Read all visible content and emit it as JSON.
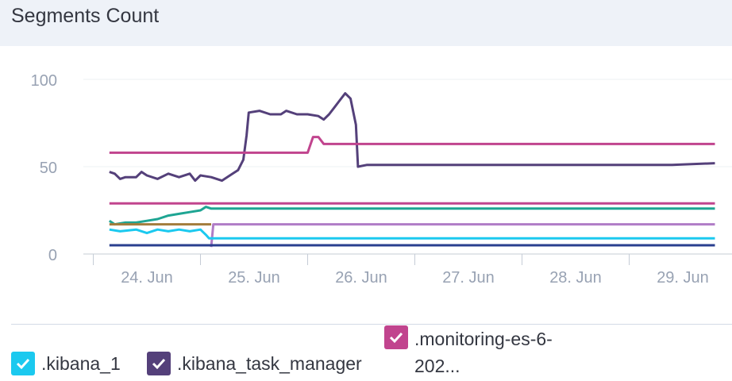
{
  "header": {
    "title": "Segments Count"
  },
  "legend": [
    {
      "label": ".kibana_1",
      "color": "#1bc9ef"
    },
    {
      "label": ".kibana_task_manager",
      "color": "#54407a"
    },
    {
      "label_line1": ".monitoring-es-6-",
      "label_line2": "202...",
      "color": "#c1448e"
    }
  ],
  "chart_data": {
    "type": "line",
    "xlabel": "",
    "ylabel": "",
    "x_ticks": [
      "24. Jun",
      "25. Jun",
      "26. Jun",
      "27. Jun",
      "28. Jun",
      "29. Jun"
    ],
    "y_ticks": [
      "0",
      "50",
      "100"
    ],
    "ylim": [
      0,
      100
    ],
    "xlim_days": [
      -0.35,
      5.3
    ],
    "grid": true,
    "legend_position": "bottom",
    "series": [
      {
        "color": "#54407a",
        "points": [
          [
            -0.35,
            47
          ],
          [
            -0.3,
            46
          ],
          [
            -0.25,
            43
          ],
          [
            -0.2,
            44
          ],
          [
            -0.1,
            44
          ],
          [
            -0.05,
            47
          ],
          [
            0,
            45
          ],
          [
            0.1,
            43
          ],
          [
            0.2,
            46
          ],
          [
            0.3,
            44
          ],
          [
            0.4,
            46
          ],
          [
            0.45,
            42
          ],
          [
            0.5,
            45
          ],
          [
            0.6,
            44
          ],
          [
            0.7,
            42
          ],
          [
            0.8,
            46
          ],
          [
            0.85,
            48
          ],
          [
            0.9,
            54
          ],
          [
            0.93,
            68
          ],
          [
            0.95,
            81
          ],
          [
            1.05,
            82
          ],
          [
            1.15,
            80
          ],
          [
            1.25,
            80
          ],
          [
            1.3,
            82
          ],
          [
            1.4,
            80
          ],
          [
            1.5,
            80
          ],
          [
            1.6,
            79
          ],
          [
            1.65,
            77
          ],
          [
            1.7,
            80
          ],
          [
            1.75,
            84
          ],
          [
            1.8,
            88
          ],
          [
            1.85,
            92
          ],
          [
            1.9,
            89
          ],
          [
            1.95,
            74
          ],
          [
            1.97,
            50
          ],
          [
            2.05,
            51
          ],
          [
            2.2,
            51
          ],
          [
            2.5,
            51
          ],
          [
            2.8,
            51
          ],
          [
            3.1,
            51
          ],
          [
            3.4,
            51
          ],
          [
            3.7,
            51
          ],
          [
            4.0,
            51
          ],
          [
            4.3,
            51
          ],
          [
            4.6,
            51
          ],
          [
            4.9,
            51
          ],
          [
            5.3,
            52
          ]
        ]
      },
      {
        "color": "#c1448e",
        "points": [
          [
            -0.35,
            58
          ],
          [
            1.45,
            58
          ],
          [
            1.5,
            58
          ],
          [
            1.55,
            67
          ],
          [
            1.6,
            67
          ],
          [
            1.65,
            63
          ],
          [
            5.3,
            63
          ]
        ]
      },
      {
        "color": "#c1448e",
        "points": [
          [
            -0.35,
            29
          ],
          [
            5.3,
            29
          ]
        ]
      },
      {
        "color": "#1ea593",
        "points": [
          [
            -0.35,
            19
          ],
          [
            -0.3,
            17
          ],
          [
            -0.2,
            18
          ],
          [
            -0.1,
            18
          ],
          [
            0,
            19
          ],
          [
            0.1,
            20
          ],
          [
            0.2,
            22
          ],
          [
            0.3,
            23
          ],
          [
            0.4,
            24
          ],
          [
            0.5,
            25
          ],
          [
            0.55,
            27
          ],
          [
            0.6,
            26
          ],
          [
            0.65,
            26
          ],
          [
            5.3,
            26
          ]
        ]
      },
      {
        "color": "#a37c3c",
        "points": [
          [
            -0.35,
            17
          ],
          [
            0.6,
            17
          ]
        ]
      },
      {
        "color": "#b07cc6",
        "points": [
          [
            0.6,
            4
          ],
          [
            0.62,
            17
          ],
          [
            5.3,
            17
          ]
        ]
      },
      {
        "color": "#1bc9ef",
        "points": [
          [
            -0.35,
            14
          ],
          [
            -0.25,
            13
          ],
          [
            -0.1,
            14
          ],
          [
            0,
            12
          ],
          [
            0.1,
            14
          ],
          [
            0.2,
            13
          ],
          [
            0.3,
            14
          ],
          [
            0.4,
            13
          ],
          [
            0.5,
            14
          ],
          [
            0.55,
            11
          ],
          [
            0.58,
            9
          ],
          [
            5.3,
            9
          ]
        ]
      },
      {
        "color": "#2a3f8f",
        "points": [
          [
            -0.35,
            5
          ],
          [
            5.3,
            5
          ]
        ]
      }
    ]
  }
}
